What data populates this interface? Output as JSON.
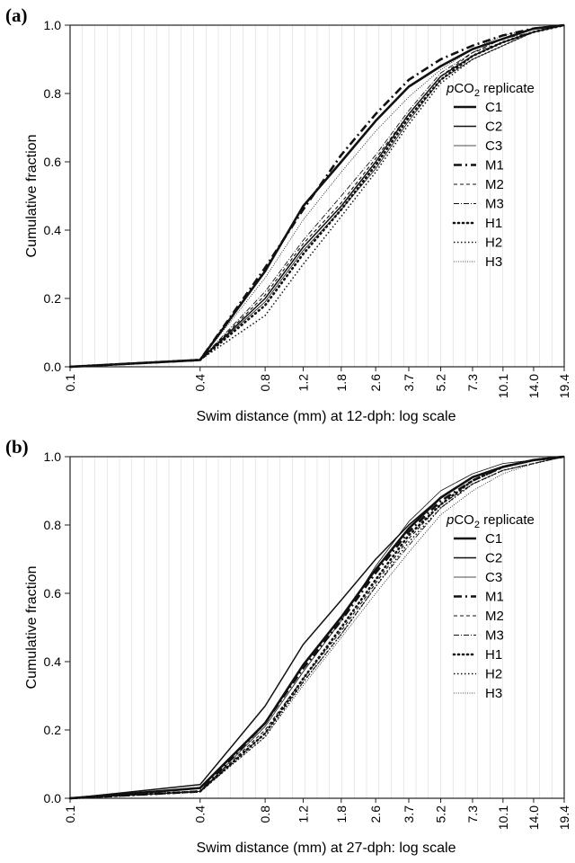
{
  "chart_data": [
    {
      "type": "line",
      "panel_label": "(a)",
      "xlabel": "Swim distance (mm) at 12-dph: log scale",
      "ylabel": "Cumulative fraction",
      "x_scale": "log",
      "x_ticks": [
        "0.1",
        "0.4",
        "0.8",
        "1.2",
        "1.8",
        "2.6",
        "3.7",
        "5.2",
        "7.3",
        "10.1",
        "14.0",
        "19.4"
      ],
      "y_ticks": [
        "0.0",
        "0.2",
        "0.4",
        "0.6",
        "0.8",
        "1.0"
      ],
      "ylim": [
        0,
        1
      ],
      "grid": "vertical light lines",
      "legend": {
        "title_prefix": "p",
        "title_main": "CO",
        "title_sub": "2",
        "title_suffix": " replicate",
        "position": "right"
      },
      "series": [
        {
          "name": "C1",
          "style": "thick-solid",
          "x": [
            "0.1",
            "0.4",
            "0.8",
            "1.2",
            "1.8",
            "2.6",
            "3.7",
            "5.2",
            "7.3",
            "10.1",
            "14.0",
            "19.4"
          ],
          "values": [
            0,
            0.02,
            0.28,
            0.47,
            0.6,
            0.72,
            0.82,
            0.88,
            0.93,
            0.96,
            0.99,
            1.0
          ]
        },
        {
          "name": "C2",
          "style": "solid",
          "x": [
            "0.1",
            "0.4",
            "0.8",
            "1.2",
            "1.8",
            "2.6",
            "3.7",
            "5.2",
            "7.3",
            "10.1",
            "14.0",
            "19.4"
          ],
          "values": [
            0,
            0.02,
            0.2,
            0.35,
            0.47,
            0.6,
            0.74,
            0.85,
            0.91,
            0.95,
            0.98,
            1.0
          ]
        },
        {
          "name": "C3",
          "style": "thin-solid",
          "x": [
            "0.1",
            "0.4",
            "0.8",
            "1.2",
            "1.8",
            "2.6",
            "3.7",
            "5.2",
            "7.3",
            "10.1",
            "14.0",
            "19.4"
          ],
          "values": [
            0,
            0.02,
            0.19,
            0.34,
            0.46,
            0.58,
            0.72,
            0.84,
            0.9,
            0.94,
            0.98,
            1.0
          ]
        },
        {
          "name": "M1",
          "style": "thick-dashdot",
          "x": [
            "0.1",
            "0.4",
            "0.8",
            "1.2",
            "1.8",
            "2.6",
            "3.7",
            "5.2",
            "7.3",
            "10.1",
            "14.0",
            "19.4"
          ],
          "values": [
            0,
            0.02,
            0.29,
            0.46,
            0.62,
            0.74,
            0.84,
            0.9,
            0.94,
            0.97,
            0.99,
            1.0
          ]
        },
        {
          "name": "M2",
          "style": "dashed",
          "x": [
            "0.1",
            "0.4",
            "0.8",
            "1.2",
            "1.8",
            "2.6",
            "3.7",
            "5.2",
            "7.3",
            "10.1",
            "14.0",
            "19.4"
          ],
          "values": [
            0,
            0.02,
            0.21,
            0.36,
            0.48,
            0.61,
            0.74,
            0.85,
            0.92,
            0.95,
            0.98,
            1.0
          ]
        },
        {
          "name": "M3",
          "style": "dashdot-thin",
          "x": [
            "0.1",
            "0.4",
            "0.8",
            "1.2",
            "1.8",
            "2.6",
            "3.7",
            "5.2",
            "7.3",
            "10.1",
            "14.0",
            "19.4"
          ],
          "values": [
            0,
            0.02,
            0.22,
            0.37,
            0.5,
            0.62,
            0.75,
            0.86,
            0.92,
            0.96,
            0.98,
            1.0
          ]
        },
        {
          "name": "H1",
          "style": "thick-dotted",
          "x": [
            "0.1",
            "0.4",
            "0.8",
            "1.2",
            "1.8",
            "2.6",
            "3.7",
            "5.2",
            "7.3",
            "10.1",
            "14.0",
            "19.4"
          ],
          "values": [
            0,
            0.02,
            0.18,
            0.33,
            0.46,
            0.59,
            0.73,
            0.84,
            0.91,
            0.95,
            0.98,
            1.0
          ]
        },
        {
          "name": "H2",
          "style": "dotted",
          "x": [
            "0.1",
            "0.4",
            "0.8",
            "1.2",
            "1.8",
            "2.6",
            "3.7",
            "5.2",
            "7.3",
            "10.1",
            "14.0",
            "19.4"
          ],
          "values": [
            0,
            0.02,
            0.15,
            0.3,
            0.44,
            0.57,
            0.71,
            0.83,
            0.9,
            0.94,
            0.98,
            1.0
          ]
        },
        {
          "name": "H3",
          "style": "fine-dotted",
          "x": [
            "0.1",
            "0.4",
            "0.8",
            "1.2",
            "1.8",
            "2.6",
            "3.7",
            "5.2",
            "7.3",
            "10.1",
            "14.0",
            "19.4"
          ],
          "values": [
            0,
            0.02,
            0.26,
            0.43,
            0.57,
            0.69,
            0.79,
            0.87,
            0.93,
            0.97,
            0.99,
            1.0
          ]
        }
      ]
    },
    {
      "type": "line",
      "panel_label": "(b)",
      "xlabel": "Swim distance (mm) at 27-dph: log scale",
      "ylabel": "Cumulative fraction",
      "x_scale": "log",
      "x_ticks": [
        "0.1",
        "0.4",
        "0.8",
        "1.2",
        "1.8",
        "2.6",
        "3.7",
        "5.2",
        "7.3",
        "10.1",
        "14.0",
        "19.4"
      ],
      "y_ticks": [
        "0.0",
        "0.2",
        "0.4",
        "0.6",
        "0.8",
        "1.0"
      ],
      "ylim": [
        0,
        1
      ],
      "grid": "vertical light lines",
      "legend": {
        "title_prefix": "p",
        "title_main": "CO",
        "title_sub": "2",
        "title_suffix": " replicate",
        "position": "right"
      },
      "series": [
        {
          "name": "C1",
          "style": "thick-solid",
          "x": [
            "0.1",
            "0.4",
            "0.8",
            "1.2",
            "1.8",
            "2.6",
            "3.7",
            "5.2",
            "7.3",
            "10.1",
            "14.0",
            "19.4"
          ],
          "values": [
            0,
            0.03,
            0.22,
            0.39,
            0.53,
            0.67,
            0.79,
            0.88,
            0.94,
            0.97,
            0.99,
            1.0
          ]
        },
        {
          "name": "C2",
          "style": "solid",
          "x": [
            "0.1",
            "0.4",
            "0.8",
            "1.2",
            "1.8",
            "2.6",
            "3.7",
            "5.2",
            "7.3",
            "10.1",
            "14.0",
            "19.4"
          ],
          "values": [
            0,
            0.04,
            0.27,
            0.45,
            0.58,
            0.7,
            0.8,
            0.88,
            0.94,
            0.97,
            0.99,
            1.0
          ]
        },
        {
          "name": "C3",
          "style": "thin-solid",
          "x": [
            "0.1",
            "0.4",
            "0.8",
            "1.2",
            "1.8",
            "2.6",
            "3.7",
            "5.2",
            "7.3",
            "10.1",
            "14.0",
            "19.4"
          ],
          "values": [
            0,
            0.02,
            0.21,
            0.37,
            0.52,
            0.68,
            0.81,
            0.9,
            0.95,
            0.98,
            0.99,
            1.0
          ]
        },
        {
          "name": "M1",
          "style": "thick-dashdot",
          "x": [
            "0.1",
            "0.4",
            "0.8",
            "1.2",
            "1.8",
            "2.6",
            "3.7",
            "5.2",
            "7.3",
            "10.1",
            "14.0",
            "19.4"
          ],
          "values": [
            0,
            0.02,
            0.22,
            0.38,
            0.52,
            0.66,
            0.78,
            0.87,
            0.93,
            0.97,
            0.99,
            1.0
          ]
        },
        {
          "name": "M2",
          "style": "dashed",
          "x": [
            "0.1",
            "0.4",
            "0.8",
            "1.2",
            "1.8",
            "2.6",
            "3.7",
            "5.2",
            "7.3",
            "10.1",
            "14.0",
            "19.4"
          ],
          "values": [
            0,
            0.02,
            0.2,
            0.35,
            0.49,
            0.63,
            0.76,
            0.86,
            0.92,
            0.96,
            0.98,
            1.0
          ]
        },
        {
          "name": "M3",
          "style": "dashdot-thin",
          "x": [
            "0.1",
            "0.4",
            "0.8",
            "1.2",
            "1.8",
            "2.6",
            "3.7",
            "5.2",
            "7.3",
            "10.1",
            "14.0",
            "19.4"
          ],
          "values": [
            0,
            0.02,
            0.19,
            0.34,
            0.48,
            0.62,
            0.74,
            0.85,
            0.92,
            0.96,
            0.98,
            1.0
          ]
        },
        {
          "name": "H1",
          "style": "thick-dotted",
          "x": [
            "0.1",
            "0.4",
            "0.8",
            "1.2",
            "1.8",
            "2.6",
            "3.7",
            "5.2",
            "7.3",
            "10.1",
            "14.0",
            "19.4"
          ],
          "values": [
            0,
            0.02,
            0.19,
            0.35,
            0.5,
            0.64,
            0.77,
            0.86,
            0.93,
            0.97,
            0.99,
            1.0
          ]
        },
        {
          "name": "H2",
          "style": "dotted",
          "x": [
            "0.1",
            "0.4",
            "0.8",
            "1.2",
            "1.8",
            "2.6",
            "3.7",
            "5.2",
            "7.3",
            "10.1",
            "14.0",
            "19.4"
          ],
          "values": [
            0,
            0.02,
            0.18,
            0.34,
            0.48,
            0.62,
            0.75,
            0.85,
            0.92,
            0.96,
            0.98,
            1.0
          ]
        },
        {
          "name": "H3",
          "style": "fine-dotted",
          "x": [
            "0.1",
            "0.4",
            "0.8",
            "1.2",
            "1.8",
            "2.6",
            "3.7",
            "5.2",
            "7.3",
            "10.1",
            "14.0",
            "19.4"
          ],
          "values": [
            0,
            0.02,
            0.18,
            0.33,
            0.47,
            0.6,
            0.72,
            0.83,
            0.9,
            0.95,
            0.98,
            1.0
          ]
        }
      ]
    }
  ]
}
